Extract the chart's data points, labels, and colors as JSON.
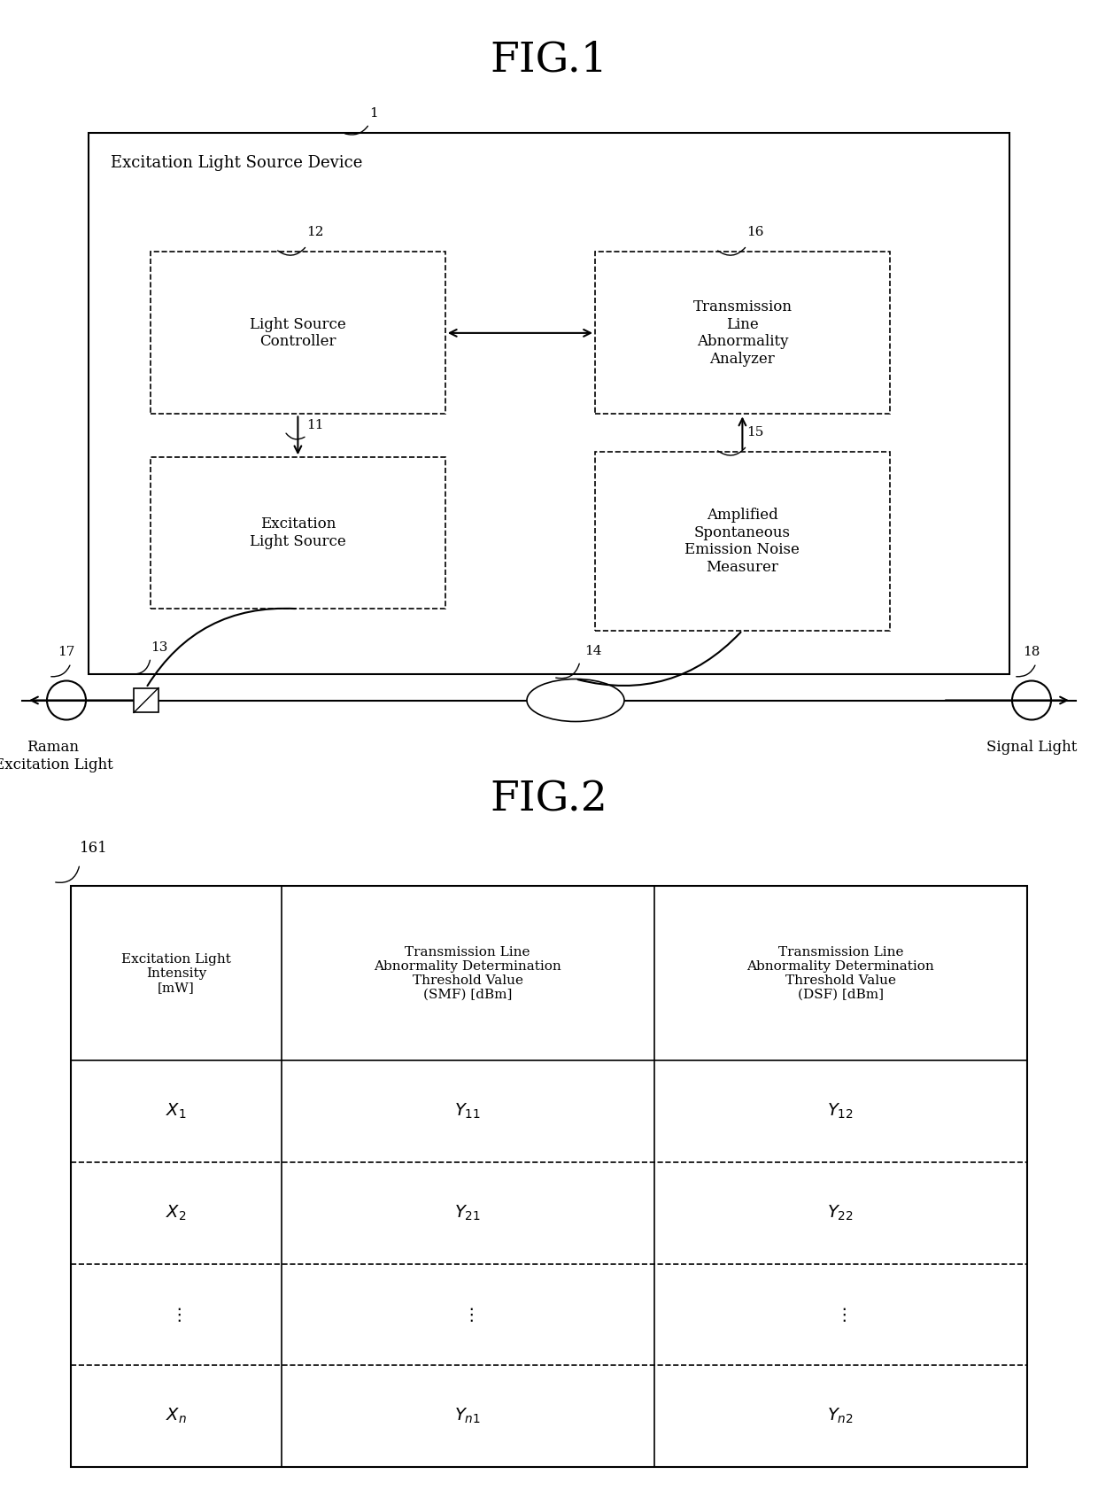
{
  "fig_title1": "FIG.1",
  "fig_title2": "FIG.2",
  "background_color": "#ffffff",
  "fig_width": 12.4,
  "fig_height": 16.91,
  "dpi": 100,
  "outer_box_label": "Excitation Light Source Device",
  "outer_box_ref": "1",
  "lsc_label": "Light Source\nController",
  "tla_label": "Transmission\nLine\nAbnormality\nAnalyzer",
  "els_label": "Excitation\nLight Source",
  "asm_label": "Amplified\nSpontaneous\nEmission Noise\nMeasurer",
  "ref_12": "12",
  "ref_11": "11",
  "ref_16": "16",
  "ref_15": "15",
  "ref_13": "13",
  "ref_14": "14",
  "ref_17": "17",
  "ref_18": "18",
  "ref_1": "1",
  "raman_label": "Raman\nExcitation Light",
  "signal_label": "Signal Light",
  "table_ref": "161",
  "table_col_headers": [
    "Excitation Light\nIntensity\n[mW]",
    "Transmission Line\nAbnormality Determination\nThreshold Value\n(SMF) [dBm]",
    "Transmission Line\nAbnormality Determination\nThreshold Value\n(DSF) [dBm]"
  ],
  "table_rows": [
    [
      "$X_1$",
      "$Y_{11}$",
      "$Y_{12}$"
    ],
    [
      "$X_2$",
      "$Y_{21}$",
      "$Y_{22}$"
    ],
    [
      "$\\vdots$",
      "$\\vdots$",
      "$\\vdots$"
    ],
    [
      "$X_n$",
      "$Y_{n1}$",
      "$Y_{n2}$"
    ]
  ]
}
